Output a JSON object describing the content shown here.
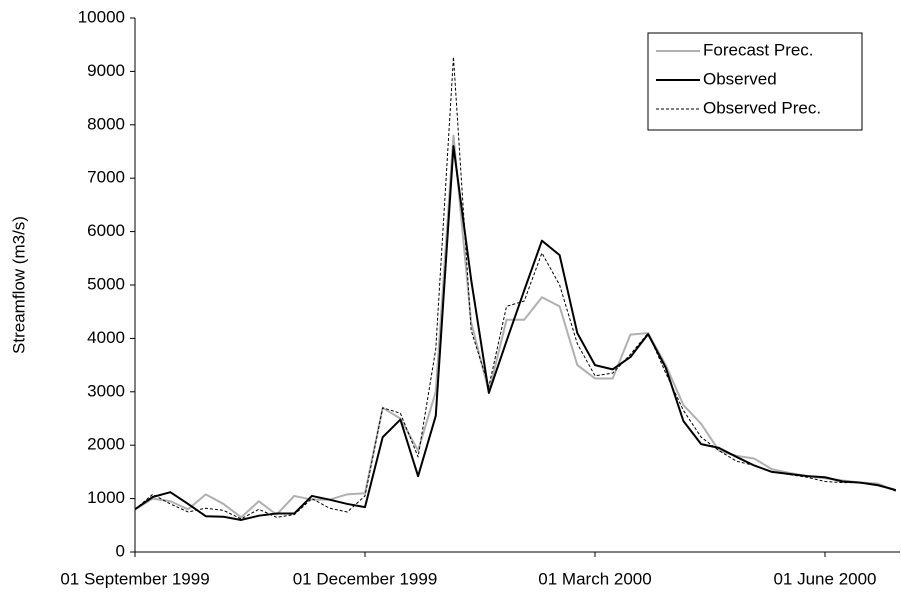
{
  "chart_data": {
    "type": "line",
    "y_label": "Streamflow (m3/s)",
    "categories": [
      "01 September 1999",
      null,
      null,
      null,
      null,
      null,
      null,
      null,
      null,
      null,
      null,
      null,
      null,
      "01 December 1999",
      null,
      null,
      null,
      null,
      null,
      null,
      null,
      null,
      null,
      null,
      null,
      null,
      "01 March 2000",
      null,
      null,
      null,
      null,
      null,
      null,
      null,
      null,
      null,
      null,
      null,
      null,
      "01 June 2000",
      null,
      null,
      null,
      null
    ],
    "ylim": [
      0,
      10000
    ],
    "yticks": [
      0,
      1000,
      2000,
      3000,
      4000,
      5000,
      6000,
      7000,
      8000,
      9000,
      10000
    ],
    "legend": "top-right",
    "series": [
      {
        "name": "Forecast Prec.",
        "color": "#b0b0b0",
        "line_style": "solid",
        "values": [
          800,
          1000,
          950,
          800,
          1080,
          900,
          650,
          950,
          700,
          1050,
          980,
          980,
          1080,
          1100,
          2700,
          2500,
          1900,
          3000,
          7800,
          4300,
          3000,
          4350,
          4350,
          4770,
          4600,
          3500,
          3250,
          3250,
          4070,
          4100,
          3500,
          2750,
          2400,
          1900,
          1800,
          1750,
          1550,
          1480,
          1420,
          1380,
          1340,
          1300,
          1280,
          1150
        ]
      },
      {
        "name": "Observed",
        "color": "#000000",
        "line_style": "solid",
        "values": [
          800,
          1030,
          1120,
          900,
          670,
          660,
          600,
          680,
          720,
          720,
          1050,
          980,
          900,
          840,
          2150,
          2480,
          1420,
          2550,
          7600,
          5100,
          2980,
          3950,
          4900,
          5830,
          5560,
          4100,
          3500,
          3420,
          3650,
          4080,
          3450,
          2450,
          2020,
          1950,
          1780,
          1620,
          1500,
          1460,
          1420,
          1400,
          1320,
          1300,
          1250,
          1160
        ]
      },
      {
        "name": "Observed Prec.",
        "color": "#000000",
        "line_style": "dotted",
        "values": [
          800,
          1080,
          900,
          750,
          820,
          780,
          620,
          800,
          650,
          700,
          1000,
          820,
          750,
          1050,
          2700,
          2600,
          1780,
          3800,
          9270,
          4150,
          3100,
          4600,
          4700,
          5600,
          5000,
          3900,
          3300,
          3350,
          3700,
          4100,
          3350,
          2650,
          2150,
          1900,
          1700,
          1620,
          1500,
          1450,
          1400,
          1320,
          1300,
          1300,
          1260,
          1140
        ]
      }
    ]
  }
}
